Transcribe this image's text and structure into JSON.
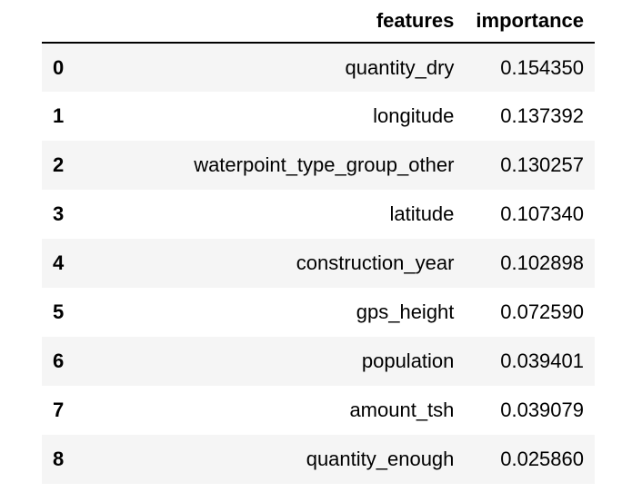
{
  "table": {
    "columns": [
      "",
      "features",
      "importance"
    ],
    "rows": [
      {
        "index": "0",
        "features": "quantity_dry",
        "importance": "0.154350"
      },
      {
        "index": "1",
        "features": "longitude",
        "importance": "0.137392"
      },
      {
        "index": "2",
        "features": "waterpoint_type_group_other",
        "importance": "0.130257"
      },
      {
        "index": "3",
        "features": "latitude",
        "importance": "0.107340"
      },
      {
        "index": "4",
        "features": "construction_year",
        "importance": "0.102898"
      },
      {
        "index": "5",
        "features": "gps_height",
        "importance": "0.072590"
      },
      {
        "index": "6",
        "features": "population",
        "importance": "0.039401"
      },
      {
        "index": "7",
        "features": "amount_tsh",
        "importance": "0.039079"
      },
      {
        "index": "8",
        "features": "quantity_enough",
        "importance": "0.025860"
      }
    ]
  }
}
